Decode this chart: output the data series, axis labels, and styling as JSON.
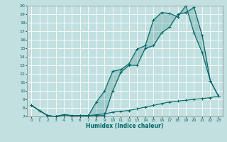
{
  "xlabel": "Humidex (Indice chaleur)",
  "xlim": [
    -0.5,
    23.5
  ],
  "ylim": [
    7,
    20
  ],
  "yticks": [
    7,
    8,
    9,
    10,
    11,
    12,
    13,
    14,
    15,
    16,
    17,
    18,
    19,
    20
  ],
  "xticks": [
    0,
    1,
    2,
    3,
    4,
    5,
    6,
    7,
    8,
    9,
    10,
    11,
    12,
    13,
    14,
    15,
    16,
    17,
    18,
    19,
    20,
    21,
    22,
    23
  ],
  "bg_color": "#c2e0e0",
  "line_color": "#006666",
  "line1_x": [
    0,
    1,
    2,
    3,
    4,
    5,
    6,
    7,
    8,
    9,
    10,
    11,
    12,
    13,
    14,
    15,
    16,
    17,
    18,
    19,
    20,
    21,
    22,
    23
  ],
  "line1_y": [
    8.3,
    7.7,
    7.1,
    7.0,
    7.2,
    7.1,
    7.1,
    7.1,
    7.2,
    7.3,
    7.5,
    7.6,
    7.7,
    7.9,
    8.1,
    8.3,
    8.5,
    8.7,
    8.8,
    8.9,
    9.0,
    9.1,
    9.2,
    9.4
  ],
  "line2_x": [
    0,
    1,
    2,
    3,
    4,
    5,
    6,
    7,
    8,
    9,
    10,
    11,
    12,
    13,
    14,
    15,
    16,
    17,
    18,
    19,
    20,
    21,
    22,
    23
  ],
  "line2_y": [
    8.3,
    7.7,
    7.1,
    7.0,
    7.2,
    7.1,
    7.1,
    7.1,
    8.7,
    10.0,
    12.3,
    12.5,
    13.2,
    14.9,
    15.3,
    18.3,
    19.2,
    19.1,
    18.7,
    20.0,
    16.8,
    14.5,
    11.2,
    9.4
  ],
  "line3_x": [
    0,
    1,
    2,
    3,
    4,
    5,
    6,
    7,
    8,
    9,
    10,
    11,
    12,
    13,
    14,
    15,
    16,
    17,
    18,
    19,
    20,
    21,
    22,
    23
  ],
  "line3_y": [
    8.3,
    7.7,
    7.1,
    7.0,
    7.2,
    7.1,
    7.1,
    7.1,
    7.1,
    7.1,
    10.0,
    12.2,
    13.0,
    13.0,
    15.0,
    15.3,
    16.8,
    17.5,
    19.0,
    19.2,
    19.8,
    16.5,
    11.2,
    9.4
  ],
  "grid_color": "#b0d0d0",
  "spine_color": "#888888"
}
